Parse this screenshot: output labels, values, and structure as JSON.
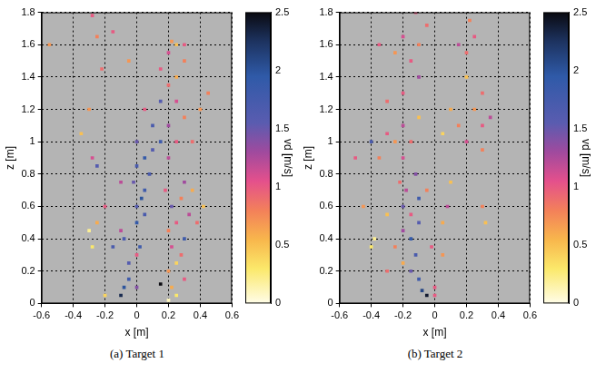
{
  "chart_data": [
    {
      "type": "scatter",
      "title": "(a) Target 1",
      "x_label": "x [m]",
      "y_label": "z [m]",
      "marker": "square",
      "grid": true,
      "xlim": [
        -0.6,
        0.6
      ],
      "xticks": [
        -0.6,
        -0.4,
        -0.2,
        0,
        0.2,
        0.4,
        0.6
      ],
      "ylim": [
        0,
        1.8
      ],
      "yticks": [
        0,
        0.2,
        0.4,
        0.6,
        0.8,
        1,
        1.2,
        1.4,
        1.6,
        1.8
      ],
      "colorbar_label": "vd [m/s]",
      "colorbar_lim": [
        0,
        2.5
      ],
      "colorbar_ticks": [
        0,
        0.5,
        1,
        1.5,
        2,
        2.5
      ],
      "x": [
        -0.1,
        -0.08,
        -0.05,
        0.0,
        -0.05,
        0.0,
        0.02,
        -0.08,
        -0.1,
        0.0,
        0.05,
        0.0,
        0.03,
        0.05,
        -0.02,
        0.08,
        0.2,
        0.25,
        0.22,
        0.3,
        0.2,
        0.25,
        0.28,
        0.22,
        0.3,
        0.2,
        0.25,
        0.33,
        0.22,
        0.28,
        0.18,
        0.3,
        0.35,
        0.15,
        0.38,
        0.0,
        0.05,
        0.1,
        0.15,
        0.0,
        0.2,
        0.25,
        0.1,
        0.2,
        0.3,
        0.05,
        0.15,
        0.25,
        0.35,
        0.4,
        0.2,
        0.25,
        0.15,
        0.3,
        0.2,
        0.25,
        0.3,
        0.22,
        -0.28,
        -0.25,
        -0.15,
        -0.22,
        -0.3,
        -0.05,
        -0.28,
        -0.25,
        -0.2,
        -0.25,
        -0.28,
        -0.3,
        -0.15,
        -0.2,
        -0.55,
        -0.1,
        0.45,
        0.42,
        -0.35
      ],
      "values": [
        0.05,
        0.1,
        0.15,
        0.1,
        0.25,
        0.3,
        0.35,
        0.4,
        0.45,
        0.5,
        0.55,
        0.6,
        0.65,
        0.7,
        0.75,
        0.8,
        0.02,
        0.05,
        0.1,
        0.15,
        0.2,
        0.25,
        0.3,
        0.35,
        0.4,
        0.45,
        0.5,
        0.55,
        0.6,
        0.65,
        0.7,
        0.75,
        0.7,
        0.12,
        0.5,
        0.85,
        0.9,
        0.95,
        1.0,
        1.0,
        0.9,
        1.0,
        1.1,
        1.1,
        1.15,
        1.2,
        1.25,
        1.25,
        1.0,
        1.2,
        1.35,
        1.4,
        1.45,
        1.5,
        1.55,
        1.6,
        1.6,
        1.62,
        1.78,
        1.65,
        1.68,
        1.45,
        1.2,
        1.5,
        0.9,
        0.85,
        0.6,
        0.5,
        0.35,
        0.45,
        0.35,
        0.05,
        1.6,
        0.75,
        1.3,
        0.6,
        1.05
      ],
      "speeds": [
        2.3,
        2.0,
        1.8,
        1.4,
        1.6,
        1.0,
        1.8,
        1.7,
        1.2,
        1.9,
        1.7,
        1.6,
        2.0,
        1.8,
        1.5,
        1.7,
        0.1,
        0.3,
        0.6,
        1.0,
        0.7,
        0.4,
        0.9,
        1.1,
        1.8,
        0.8,
        1.0,
        1.2,
        1.5,
        0.8,
        1.0,
        1.3,
        0.6,
        2.5,
        0.9,
        1.7,
        1.9,
        1.6,
        1.8,
        1.5,
        1.2,
        1.0,
        1.7,
        1.3,
        0.8,
        1.0,
        1.6,
        1.1,
        0.9,
        0.7,
        0.9,
        0.6,
        1.0,
        0.8,
        1.1,
        0.5,
        1.0,
        0.7,
        1.0,
        0.8,
        1.0,
        0.9,
        0.7,
        0.7,
        1.1,
        1.6,
        1.0,
        0.6,
        0.3,
        0.2,
        1.7,
        0.4,
        0.7,
        1.2,
        0.8,
        0.5,
        0.5
      ]
    },
    {
      "type": "scatter",
      "title": "(b) Target 2",
      "x_label": "x [m]",
      "y_label": "z [m]",
      "marker": "square",
      "grid": true,
      "xlim": [
        -0.6,
        0.6
      ],
      "xticks": [
        -0.6,
        -0.4,
        -0.2,
        0,
        0.2,
        0.4,
        0.6
      ],
      "ylim": [
        0,
        1.8
      ],
      "yticks": [
        0,
        0.2,
        0.4,
        0.6,
        0.8,
        1,
        1.2,
        1.4,
        1.6,
        1.8
      ],
      "colorbar_label": "vd [m/s]",
      "colorbar_lim": [
        0,
        2.5
      ],
      "colorbar_ticks": [
        0,
        0.5,
        1,
        1.5,
        2,
        2.5
      ],
      "x": [
        -0.05,
        -0.08,
        0.0,
        -0.1,
        -0.15,
        -0.2,
        -0.12,
        -0.15,
        -0.2,
        -0.25,
        -0.1,
        -0.15,
        -0.2,
        -0.1,
        -0.18,
        -0.22,
        -0.12,
        -0.05,
        -0.3,
        -0.38,
        -0.4,
        -0.02,
        0.05,
        0.08,
        0.05,
        -0.2,
        -0.25,
        -0.3,
        -0.15,
        -0.4,
        -0.35,
        -0.2,
        -0.1,
        0.05,
        0.15,
        0.2,
        0.3,
        0.25,
        0.3,
        0.35,
        -0.3,
        -0.2,
        0.1,
        0.2,
        -0.15,
        -0.1,
        -0.2,
        -0.05,
        -0.25,
        0.15,
        0.2,
        0.25,
        0.22,
        -0.35,
        -0.1,
        -0.45,
        -0.5,
        0.1,
        0.3,
        0.32,
        -0.3,
        0.0,
        0.3,
        -0.12
      ],
      "values": [
        0.05,
        0.08,
        0.05,
        0.15,
        0.2,
        0.25,
        0.3,
        0.4,
        0.45,
        0.35,
        0.5,
        0.55,
        0.6,
        0.65,
        0.7,
        0.75,
        0.8,
        0.7,
        0.55,
        0.4,
        0.35,
        0.35,
        0.5,
        0.6,
        0.3,
        0.9,
        1.0,
        1.05,
        1.0,
        1.0,
        0.9,
        1.1,
        1.15,
        1.05,
        1.1,
        1.0,
        1.1,
        1.2,
        1.3,
        1.15,
        1.25,
        1.3,
        1.2,
        1.4,
        1.5,
        1.6,
        1.65,
        1.72,
        1.55,
        1.6,
        1.55,
        1.65,
        1.75,
        1.6,
        1.4,
        0.6,
        0.9,
        0.75,
        0.6,
        0.5,
        0.2,
        0.1,
        0.95,
        1.8
      ],
      "speeds": [
        2.4,
        2.1,
        1.0,
        1.8,
        1.5,
        0.6,
        1.7,
        1.9,
        1.3,
        0.8,
        1.6,
        1.0,
        1.5,
        1.8,
        1.2,
        0.9,
        1.4,
        0.8,
        0.5,
        0.2,
        0.3,
        1.0,
        0.6,
        1.2,
        0.7,
        1.1,
        0.7,
        1.0,
        0.9,
        1.7,
        0.8,
        1.2,
        0.5,
        0.4,
        0.8,
        1.1,
        1.0,
        0.7,
        0.9,
        1.2,
        0.9,
        1.0,
        0.6,
        0.5,
        1.0,
        0.8,
        1.1,
        0.9,
        0.7,
        1.2,
        0.9,
        1.0,
        0.8,
        1.0,
        1.3,
        0.7,
        1.0,
        0.5,
        0.8,
        0.5,
        0.9,
        1.0,
        0.8,
        1.0
      ]
    }
  ]
}
